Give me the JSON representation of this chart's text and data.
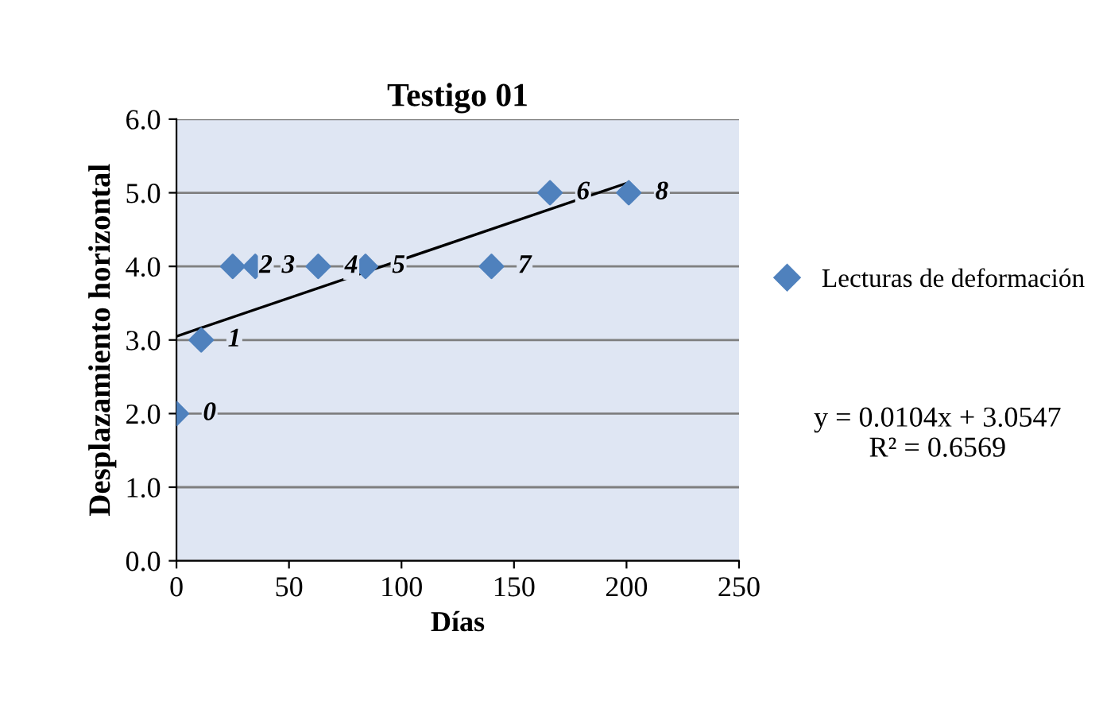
{
  "chart_data": {
    "type": "scatter",
    "title": "Testigo 01",
    "xlabel": "Días",
    "ylabel": "Desplazamiento horizontal",
    "x": [
      0,
      11,
      25,
      35,
      63,
      84,
      140,
      166,
      201
    ],
    "series": [
      {
        "name": "Lecturas de deformación",
        "color": "#4f81bd",
        "marker": "diamond",
        "values": [
          2,
          3,
          4,
          4,
          4,
          4,
          4,
          5,
          5
        ]
      },
      {
        "type": "line",
        "color": "#000000",
        "x": [
          0,
          200
        ],
        "values": [
          3.05,
          5.13
        ],
        "line_style": "solid",
        "marker": "none"
      }
    ],
    "annotations": [
      {
        "text": "0",
        "x": 0,
        "y": 2
      },
      {
        "text": "1",
        "x": 11,
        "y": 3
      },
      {
        "text": "2",
        "x": 25,
        "y": 4
      },
      {
        "text": "3",
        "x": 35,
        "y": 4
      },
      {
        "text": "4",
        "x": 63,
        "y": 4
      },
      {
        "text": "5",
        "x": 84,
        "y": 4
      },
      {
        "text": "7",
        "x": 140,
        "y": 4
      },
      {
        "text": "6",
        "x": 166,
        "y": 5
      },
      {
        "text": "8",
        "x": 201,
        "y": 5
      },
      "y = 0.0104x + 3.0547\nR² = 0.6569"
    ],
    "xlim": [
      0,
      250
    ],
    "xticks": [
      0,
      50,
      100,
      150,
      200,
      250
    ],
    "ylim": [
      0,
      6
    ],
    "yticks": [
      {
        "value": 0,
        "label": "0.0"
      },
      {
        "value": 1,
        "label": "1.0"
      },
      {
        "value": 2,
        "label": "2.0"
      },
      {
        "value": 3,
        "label": "3.0"
      },
      {
        "value": 4,
        "label": "4.0"
      },
      {
        "value": 5,
        "label": "5.0"
      },
      {
        "value": 6,
        "label": "6.0"
      }
    ],
    "grid": "y",
    "legend": "right"
  }
}
